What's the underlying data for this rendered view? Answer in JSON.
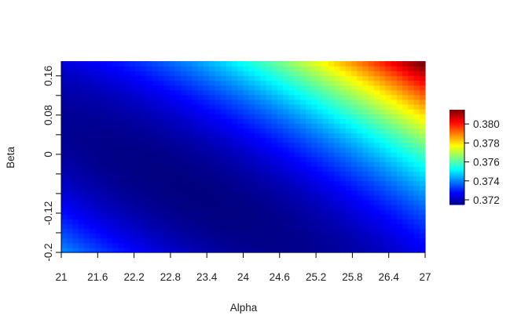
{
  "chart_data": {
    "type": "heatmap",
    "title": "",
    "xlabel": "Alpha",
    "ylabel": "Beta",
    "xlim": [
      21,
      27
    ],
    "ylim": [
      -0.2,
      0.19
    ],
    "x_ticks": [
      "21",
      "21.6",
      "22.2",
      "22.8",
      "23.4",
      "24",
      "24.6",
      "25.2",
      "25.8",
      "26.4",
      "27"
    ],
    "y_ticks": [
      "-0.2",
      "-0.12",
      "0",
      "0.08",
      "0.16"
    ],
    "y_minor_ticks": [
      -0.16,
      -0.08,
      -0.04,
      0.04,
      0.12
    ],
    "colorbar": {
      "range": [
        0.3715,
        0.3815
      ],
      "ticks": [
        "0.372",
        "0.374",
        "0.376",
        "0.378",
        "0.380"
      ],
      "palette": [
        "#00007F",
        "#0000FF",
        "#007FFF",
        "#00FFFF",
        "#7FFF7F",
        "#FFFF00",
        "#FF7F00",
        "#FF0000",
        "#7F0000"
      ]
    },
    "surface": {
      "minimum": {
        "alpha": 23.2,
        "beta": -0.08,
        "value": 0.3715
      },
      "corner_values": {
        "alpha21_beta-0.2": 0.3755,
        "alpha21_beta0.19": 0.3725,
        "alpha27_beta-0.2": 0.3725,
        "alpha27_beta0.19": 0.3815
      }
    }
  }
}
